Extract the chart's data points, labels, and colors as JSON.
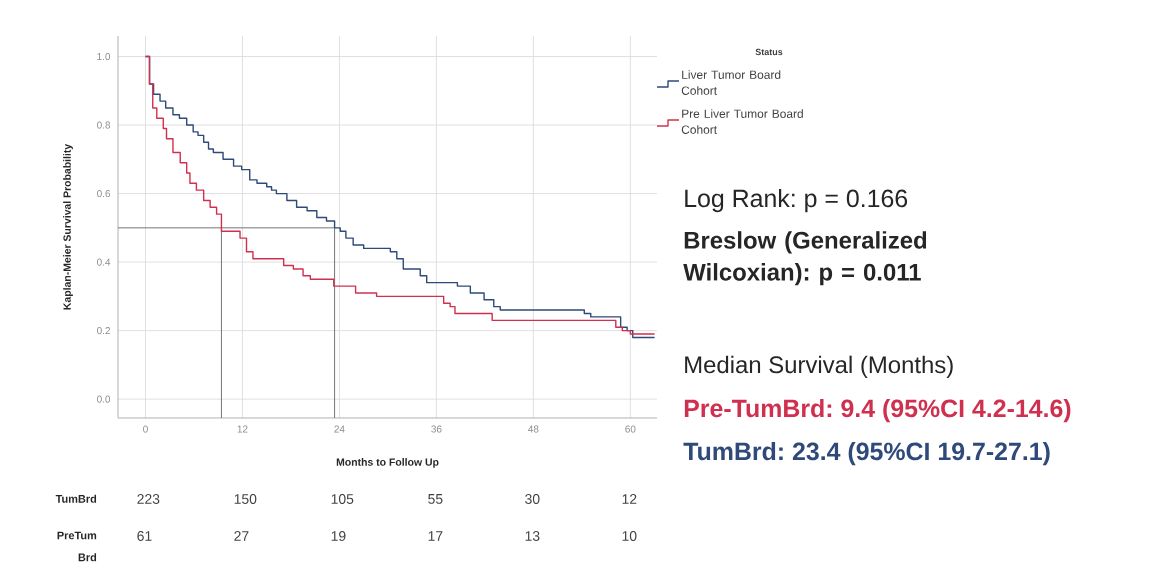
{
  "chart_data": {
    "type": "step",
    "xlabel": "Months to Follow Up",
    "ylabel": "Kaplan-Meier Survival Probability",
    "legend_title": "Status",
    "legend": "top right",
    "grid": true,
    "xlim": [
      -3.4,
      63.3
    ],
    "ylim": [
      -0.055,
      1.06
    ],
    "xticks": [
      0,
      12,
      24,
      36,
      48,
      60
    ],
    "yticks": [
      {
        "value": 0,
        "label": "0.0"
      },
      {
        "value": 0.2,
        "label": "0.2"
      },
      {
        "value": 0.4,
        "label": "0.4"
      },
      {
        "value": 0.6,
        "label": "0.6"
      },
      {
        "value": 0.8,
        "label": "0.8"
      },
      {
        "value": 1,
        "label": "1.0"
      }
    ],
    "series": [
      {
        "name": "Liver Tumor Board Cohort",
        "color": "#2f4a7a",
        "x": [
          0,
          0.5,
          1.0,
          1.8,
          2.5,
          3.4,
          4.2,
          5.1,
          5.9,
          6.5,
          7.2,
          7.8,
          8.4,
          9.6,
          10.9,
          11.9,
          12.9,
          13.8,
          15.0,
          15.6,
          16.2,
          17.5,
          18.7,
          20.0,
          21.2,
          22.4,
          23.4,
          24.1,
          24.8,
          25.7,
          27.0,
          30.3,
          31.1,
          31.9,
          34.0,
          34.8,
          38.6,
          40.2,
          41.9,
          43.1,
          43.9,
          54.3,
          55.1,
          58.8,
          59.6,
          60.3,
          63.0
        ],
        "values": [
          1.0,
          0.92,
          0.89,
          0.87,
          0.85,
          0.83,
          0.82,
          0.8,
          0.78,
          0.77,
          0.75,
          0.73,
          0.72,
          0.7,
          0.68,
          0.67,
          0.64,
          0.63,
          0.62,
          0.61,
          0.6,
          0.58,
          0.56,
          0.55,
          0.53,
          0.52,
          0.5,
          0.49,
          0.47,
          0.45,
          0.44,
          0.43,
          0.41,
          0.38,
          0.36,
          0.34,
          0.33,
          0.31,
          0.29,
          0.27,
          0.26,
          0.25,
          0.24,
          0.21,
          0.2,
          0.18,
          0.18
        ]
      },
      {
        "name": "Pre Liver Tumor Board Cohort",
        "color": "#d0304f",
        "x": [
          0,
          0.5,
          0.9,
          1.4,
          2.2,
          2.6,
          3.4,
          4.3,
          5.1,
          5.5,
          6.3,
          7.2,
          8.0,
          8.8,
          9.4,
          11.7,
          12.5,
          13.3,
          17.1,
          18.3,
          19.5,
          20.4,
          23.3,
          26.0,
          28.6,
          36.9,
          37.7,
          38.3,
          42.9,
          58.2,
          59.0,
          60.0,
          63.0
        ],
        "values": [
          1.0,
          0.92,
          0.85,
          0.82,
          0.79,
          0.76,
          0.72,
          0.69,
          0.66,
          0.63,
          0.61,
          0.58,
          0.56,
          0.54,
          0.49,
          0.47,
          0.43,
          0.41,
          0.39,
          0.38,
          0.36,
          0.35,
          0.33,
          0.31,
          0.3,
          0.28,
          0.27,
          0.25,
          0.23,
          0.21,
          0.2,
          0.19,
          0.19
        ]
      }
    ],
    "ref_lines": [
      {
        "axis": "y",
        "value": 0.5,
        "color": "#666666"
      },
      {
        "axis": "x",
        "value": 9.4,
        "color": "#666666"
      },
      {
        "axis": "x",
        "value": 23.4,
        "color": "#666666"
      }
    ],
    "annotations": [
      "Log Rank: p = 0.166",
      "Breslow (Generalized Wilcoxian): p = 0.011",
      "Median Survival (Months)",
      "Pre-TumBrd: 9.4 (95%CI 4.2-14.6)",
      "TumBrd: 23.4 (95%CI 19.7-27.1)",
      "TumBrd",
      "223",
      "150",
      "105",
      "55",
      "30",
      "12",
      "PreTum Brd",
      "61",
      "27",
      "19",
      "17",
      "13",
      "10"
    ]
  }
}
